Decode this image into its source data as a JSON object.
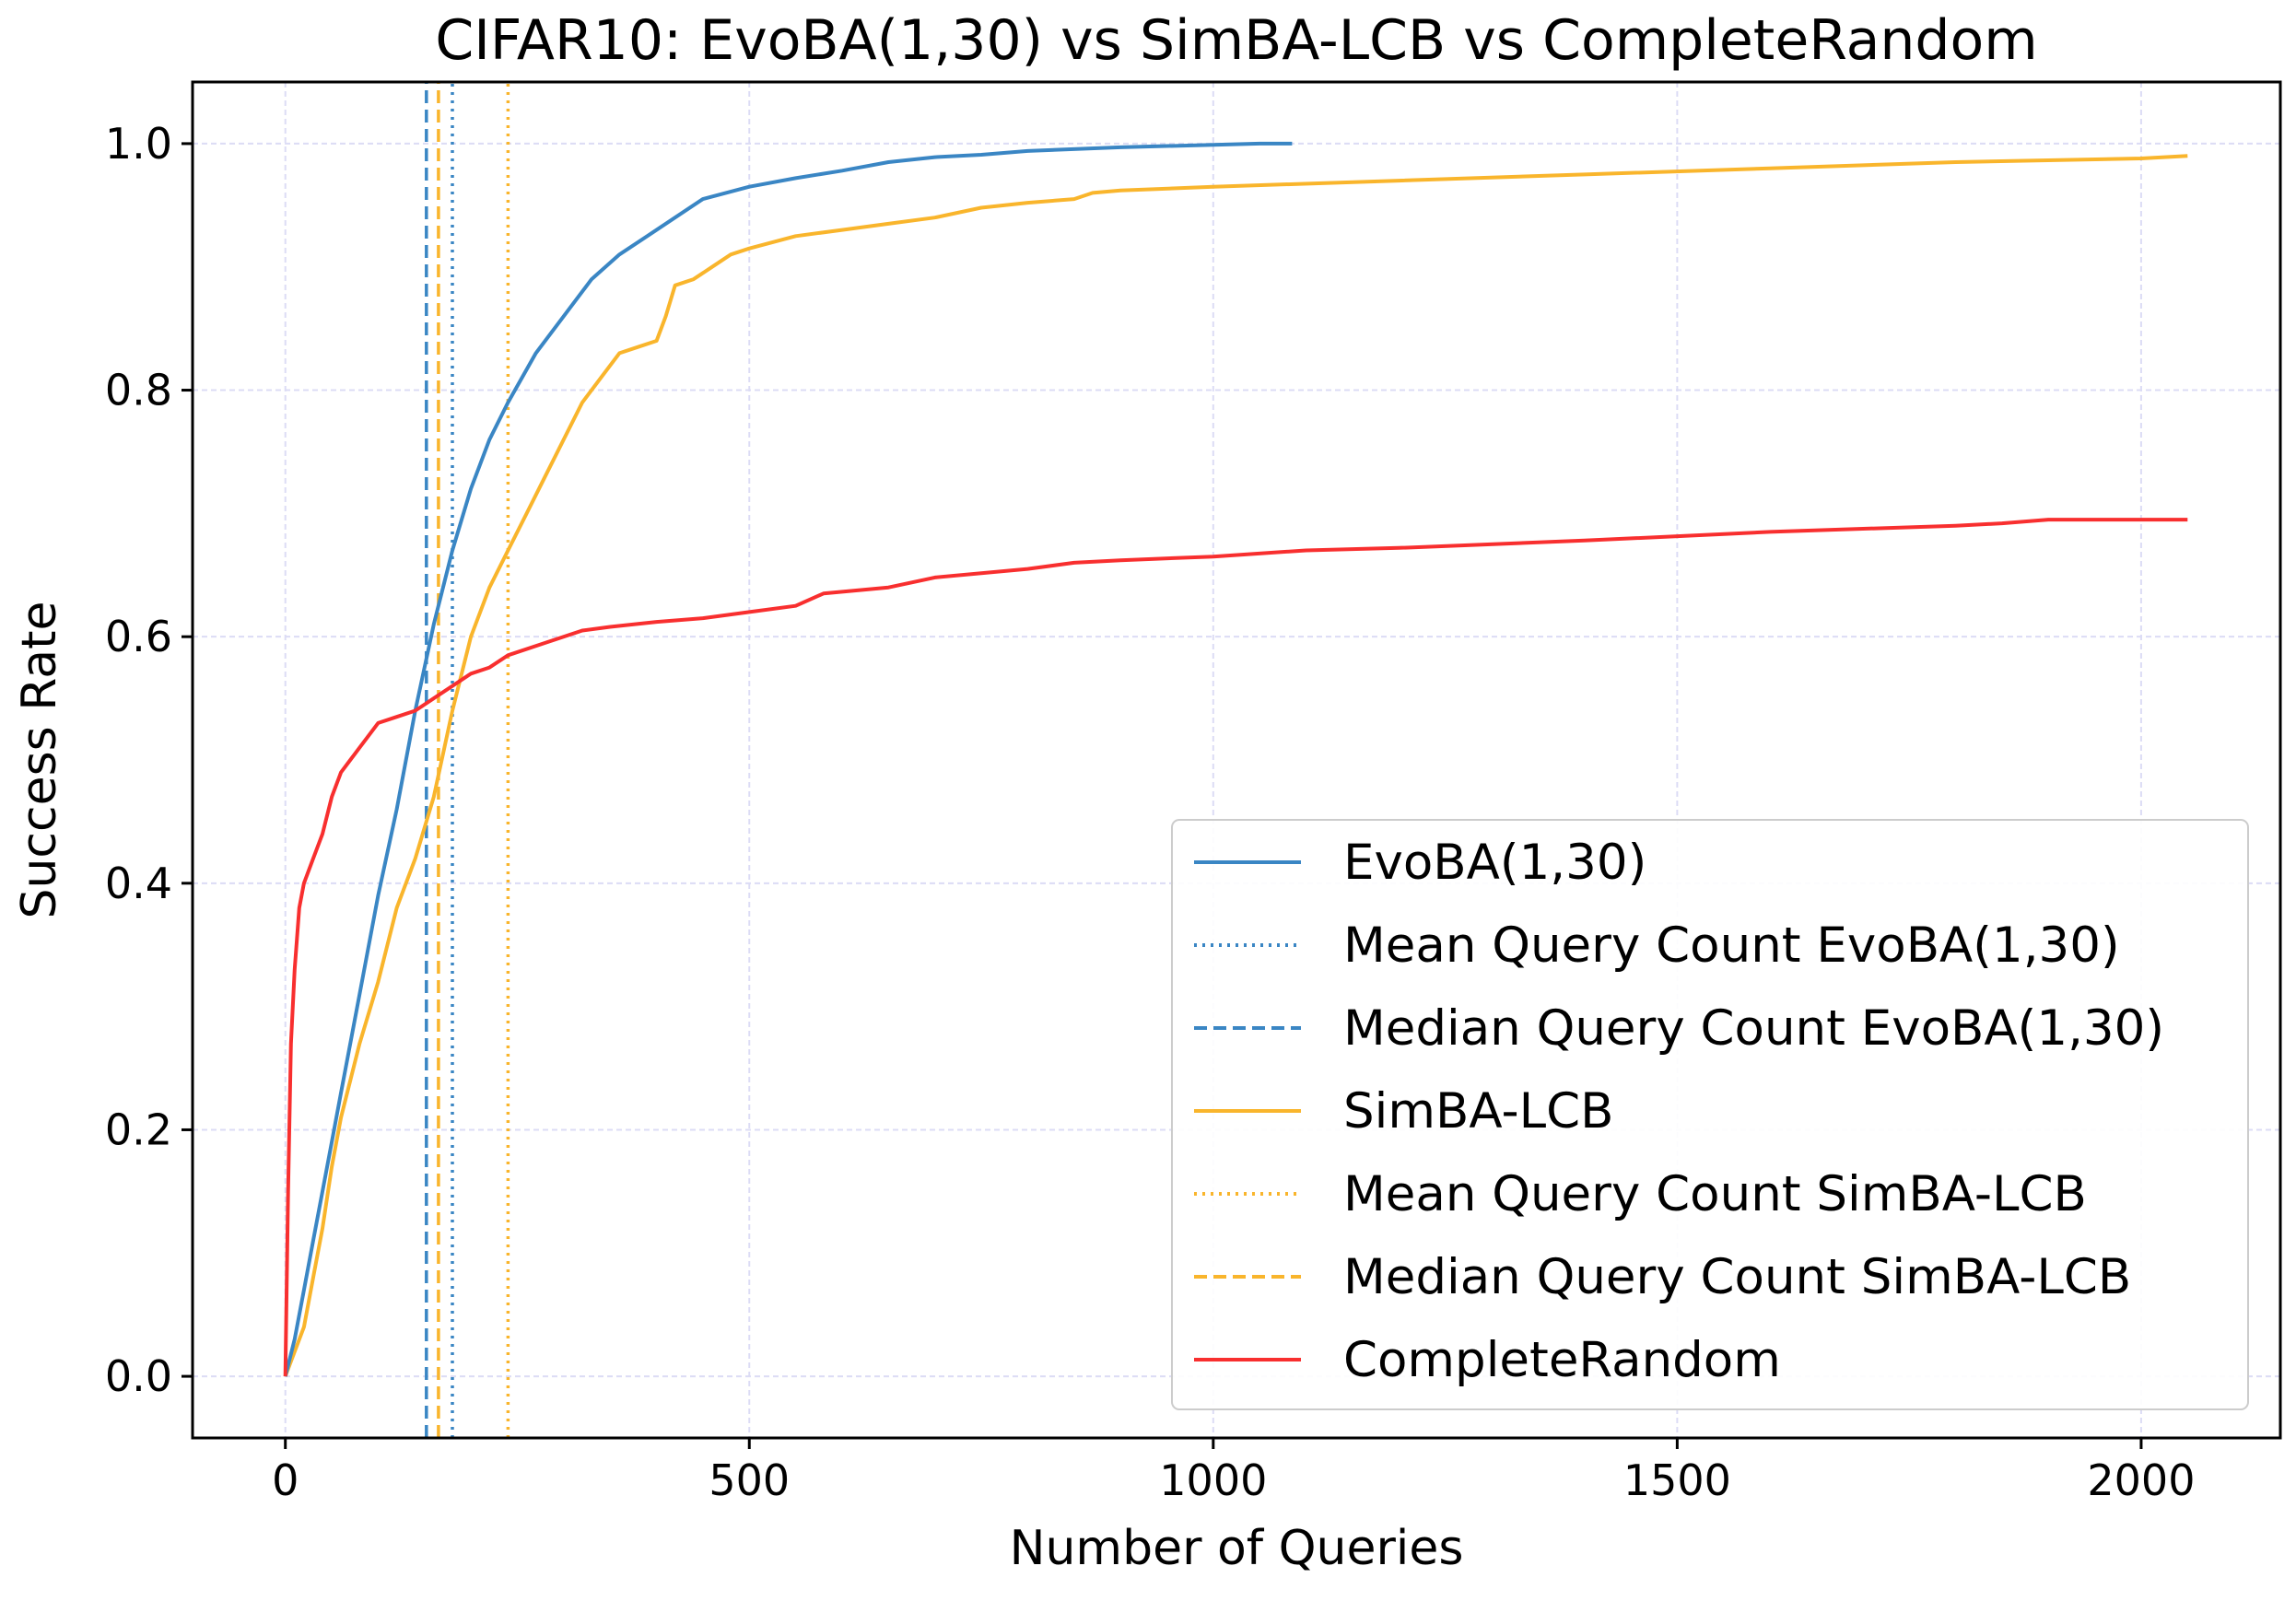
{
  "chart_data": {
    "type": "line",
    "title": "CIFAR10: EvoBA(1,30) vs SimBA-LCB vs CompleteRandom",
    "xlabel": "Number of Queries",
    "ylabel": "Success Rate",
    "xlim": [
      -100,
      2150
    ],
    "ylim": [
      -0.05,
      1.05
    ],
    "xticks": [
      0,
      500,
      1000,
      1500,
      2000
    ],
    "xtick_labels": [
      "0",
      "500",
      "1000",
      "1500",
      "2000"
    ],
    "yticks": [
      0.0,
      0.2,
      0.4,
      0.6,
      0.8,
      1.0
    ],
    "ytick_labels": [
      "0.0",
      "0.2",
      "0.4",
      "0.6",
      "0.8",
      "1.0"
    ],
    "grid": true,
    "legend_position": "lower-right",
    "series": [
      {
        "name": "EvoBA(1,30)",
        "style": "solid",
        "color": "#3a86c4",
        "x": [
          0,
          10,
          20,
          30,
          40,
          50,
          60,
          80,
          100,
          120,
          140,
          160,
          180,
          200,
          220,
          240,
          270,
          300,
          330,
          360,
          400,
          450,
          500,
          550,
          600,
          650,
          700,
          750,
          800,
          900,
          1000,
          1050,
          1085
        ],
        "y": [
          0,
          0.03,
          0.07,
          0.11,
          0.15,
          0.19,
          0.23,
          0.31,
          0.39,
          0.46,
          0.54,
          0.61,
          0.67,
          0.72,
          0.76,
          0.79,
          0.83,
          0.86,
          0.89,
          0.91,
          0.93,
          0.955,
          0.965,
          0.972,
          0.978,
          0.985,
          0.989,
          0.991,
          0.994,
          0.997,
          0.999,
          1.0,
          1.0
        ]
      },
      {
        "name": "Mean Query Count EvoBA(1,30)",
        "style": "dotted",
        "color": "#3a86c4",
        "x": [
          180,
          180
        ],
        "y": [
          -0.05,
          1.05
        ]
      },
      {
        "name": "Median Query Count EvoBA(1,30)",
        "style": "dashed",
        "color": "#3a86c4",
        "x": [
          152,
          152
        ],
        "y": [
          -0.05,
          1.05
        ]
      },
      {
        "name": "SimBA-LCB",
        "style": "solid",
        "color": "#f9b52c",
        "x": [
          0,
          10,
          20,
          30,
          40,
          50,
          60,
          80,
          100,
          120,
          140,
          160,
          180,
          200,
          220,
          240,
          260,
          280,
          300,
          320,
          340,
          360,
          380,
          400,
          410,
          420,
          440,
          460,
          480,
          500,
          550,
          600,
          650,
          700,
          750,
          800,
          850,
          870,
          900,
          1000,
          1200,
          1400,
          1600,
          1800,
          2000,
          2050
        ],
        "y": [
          0,
          0.02,
          0.04,
          0.08,
          0.12,
          0.17,
          0.21,
          0.27,
          0.32,
          0.38,
          0.42,
          0.47,
          0.54,
          0.6,
          0.64,
          0.67,
          0.7,
          0.73,
          0.76,
          0.79,
          0.81,
          0.83,
          0.835,
          0.84,
          0.86,
          0.885,
          0.89,
          0.9,
          0.91,
          0.915,
          0.925,
          0.93,
          0.935,
          0.94,
          0.948,
          0.952,
          0.955,
          0.96,
          0.962,
          0.965,
          0.97,
          0.975,
          0.98,
          0.985,
          0.988,
          0.99
        ]
      },
      {
        "name": "Mean Query Count SimBA-LCB",
        "style": "dotted",
        "color": "#f9b52c",
        "x": [
          240,
          240
        ],
        "y": [
          -0.05,
          1.05
        ]
      },
      {
        "name": "Median Query Count SimBA-LCB",
        "style": "dashed",
        "color": "#f9b52c",
        "x": [
          165,
          165
        ],
        "y": [
          -0.05,
          1.05
        ]
      },
      {
        "name": "CompleteRandom",
        "style": "solid",
        "color": "#f82f2f",
        "x": [
          0,
          3,
          6,
          10,
          15,
          20,
          30,
          40,
          50,
          60,
          70,
          80,
          90,
          100,
          120,
          140,
          160,
          180,
          200,
          220,
          240,
          280,
          320,
          350,
          400,
          450,
          500,
          550,
          580,
          650,
          700,
          800,
          850,
          900,
          1000,
          1100,
          1200,
          1400,
          1600,
          1800,
          1850,
          1900,
          2000,
          2050
        ],
        "y": [
          0,
          0.15,
          0.27,
          0.33,
          0.38,
          0.4,
          0.42,
          0.44,
          0.47,
          0.49,
          0.5,
          0.51,
          0.52,
          0.53,
          0.535,
          0.54,
          0.55,
          0.56,
          0.57,
          0.575,
          0.585,
          0.595,
          0.605,
          0.608,
          0.612,
          0.615,
          0.62,
          0.625,
          0.635,
          0.64,
          0.648,
          0.655,
          0.66,
          0.662,
          0.665,
          0.67,
          0.672,
          0.678,
          0.685,
          0.69,
          0.692,
          0.695,
          0.695,
          0.695
        ]
      }
    ]
  }
}
